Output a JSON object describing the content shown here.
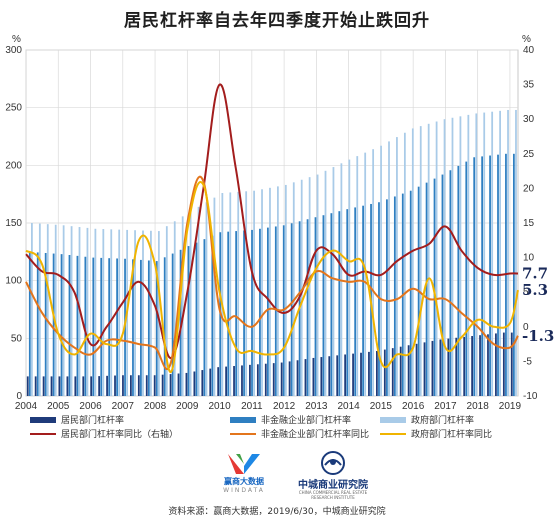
{
  "title": "居民杠杆率自去年四季度开始止跌回升",
  "source": "资料来源：赢商大数据，2019/6/30，中城商业研究院",
  "logos": {
    "wind_text": "赢商大数据",
    "wind_sub": "WINDATA",
    "zc_text": "中城商业研究院",
    "zc_sub": "CHINA COMMERCIAL REAL ESTATE RESEARCH INSTITUTE"
  },
  "chart_data": {
    "type": "bar",
    "left_axis": {
      "label": "%",
      "ylim": [
        0,
        300
      ],
      "ticks": [
        0,
        50,
        100,
        150,
        200,
        250,
        300
      ]
    },
    "right_axis": {
      "label": "%",
      "ylim": [
        -10,
        40
      ],
      "ticks": [
        -10,
        -5,
        0,
        5,
        10,
        15,
        20,
        25,
        30,
        35,
        40
      ]
    },
    "x_tick_labels": [
      "2004",
      "2005",
      "2006",
      "2007",
      "2008",
      "2009",
      "2010",
      "2011",
      "2012",
      "2013",
      "2014",
      "2015",
      "2016",
      "2017",
      "2018",
      "2019"
    ],
    "x_start": 2004.0,
    "x_end": 2019.25,
    "grid": true,
    "end_labels": [
      {
        "text": "7.7",
        "value": 7.7,
        "color": "#1a2a5a",
        "size": 15
      },
      {
        "text": "5.3",
        "value": 5.3,
        "color": "#1a2a5a",
        "size": 15
      },
      {
        "text": "-1.3",
        "value": -1.3,
        "color": "#1a2a5a",
        "size": 15
      }
    ],
    "series": [
      {
        "name": "居民部门杠杆率",
        "kind": "bar",
        "axis": "left",
        "color": "#1f3b7a",
        "x": [
          2004.0,
          2005.0,
          2006.0,
          2007.0,
          2008.0,
          2009.0,
          2010.0,
          2011.0,
          2012.0,
          2013.0,
          2014.0,
          2015.0,
          2016.0,
          2017.0,
          2018.0,
          2019.0
        ],
        "y": [
          17,
          17,
          17,
          18,
          18,
          20,
          25,
          27,
          29,
          33,
          36,
          39,
          44,
          49,
          52,
          55
        ]
      },
      {
        "name": "非金融企业部门杠杆率",
        "kind": "bar",
        "axis": "left",
        "color": "#2f7fc1",
        "x": [
          2004.0,
          2005.0,
          2006.0,
          2007.0,
          2008.0,
          2009.0,
          2010.0,
          2011.0,
          2012.0,
          2013.0,
          2014.0,
          2015.0,
          2016.0,
          2017.0,
          2018.0,
          2019.0
        ],
        "y": [
          125,
          123,
          120,
          119,
          117,
          130,
          142,
          144,
          148,
          155,
          162,
          168,
          178,
          192,
          207,
          210
        ]
      },
      {
        "name": "政府部门杠杆率",
        "kind": "bar",
        "axis": "left",
        "color": "#a9cbe8",
        "x": [
          2004.0,
          2005.0,
          2006.0,
          2007.0,
          2008.0,
          2009.0,
          2010.0,
          2011.0,
          2012.0,
          2013.0,
          2014.0,
          2015.0,
          2016.0,
          2017.0,
          2018.0,
          2019.0
        ],
        "y": [
          150,
          148,
          145,
          144,
          143,
          160,
          176,
          178,
          183,
          192,
          205,
          217,
          232,
          240,
          245,
          248
        ]
      },
      {
        "name": "居民部门杠杆率同比（右轴）",
        "kind": "line",
        "axis": "right",
        "color": "#a31d1d",
        "x": [
          2004.0,
          2004.5,
          2005.0,
          2005.5,
          2006.0,
          2006.5,
          2007.0,
          2007.5,
          2008.0,
          2008.5,
          2009.0,
          2009.5,
          2010.0,
          2010.5,
          2011.0,
          2011.5,
          2012.0,
          2012.5,
          2013.0,
          2013.5,
          2014.0,
          2014.5,
          2015.0,
          2015.5,
          2016.0,
          2016.5,
          2017.0,
          2017.5,
          2018.0,
          2018.5,
          2019.0,
          2019.25
        ],
        "y": [
          10.5,
          8.0,
          7.5,
          5.0,
          -2.5,
          0.0,
          3.5,
          6.5,
          3.0,
          -4.5,
          5.0,
          20.0,
          35.0,
          23.0,
          8.0,
          4.0,
          2.0,
          4.5,
          11.0,
          10.5,
          7.5,
          8.0,
          7.5,
          9.5,
          11.0,
          12.0,
          14.5,
          11.0,
          8.5,
          7.5,
          7.7,
          7.7
        ]
      },
      {
        "name": "非金融企业部门杠杆率同比",
        "kind": "line",
        "axis": "right",
        "color": "#e3751c",
        "x": [
          2004.0,
          2004.5,
          2005.0,
          2005.5,
          2006.0,
          2006.5,
          2007.0,
          2007.5,
          2008.0,
          2008.5,
          2009.0,
          2009.5,
          2010.0,
          2010.5,
          2011.0,
          2011.5,
          2012.0,
          2012.5,
          2013.0,
          2013.5,
          2014.0,
          2014.5,
          2015.0,
          2015.5,
          2016.0,
          2016.5,
          2017.0,
          2017.5,
          2018.0,
          2018.5,
          2019.0,
          2019.25
        ],
        "y": [
          6.5,
          2.0,
          -1.0,
          -3.0,
          -4.0,
          -2.0,
          -2.0,
          -2.5,
          -3.0,
          -5.0,
          15.0,
          21.0,
          2.5,
          1.5,
          0.0,
          2.5,
          2.5,
          5.0,
          8.0,
          7.0,
          6.5,
          6.5,
          4.0,
          4.0,
          5.5,
          4.0,
          4.0,
          2.0,
          0.0,
          -2.5,
          -3.0,
          -1.3
        ]
      },
      {
        "name": "政府部门杠杆率同比",
        "kind": "line",
        "axis": "right",
        "color": "#f0b400",
        "x": [
          2004.0,
          2004.5,
          2005.0,
          2005.5,
          2006.0,
          2006.5,
          2007.0,
          2007.5,
          2008.0,
          2008.5,
          2009.0,
          2009.5,
          2010.0,
          2010.5,
          2011.0,
          2011.5,
          2012.0,
          2012.5,
          2013.0,
          2013.5,
          2014.0,
          2014.5,
          2015.0,
          2015.5,
          2016.0,
          2016.5,
          2017.0,
          2017.5,
          2018.0,
          2018.5,
          2019.0,
          2019.25
        ],
        "y": [
          11.0,
          9.0,
          -1.0,
          -4.0,
          -1.0,
          -2.5,
          -1.0,
          12.5,
          9.0,
          -6.5,
          14.0,
          20.5,
          5.0,
          -3.0,
          -3.5,
          -4.0,
          -3.0,
          3.0,
          8.5,
          11.0,
          9.5,
          8.5,
          -5.0,
          -4.0,
          -3.0,
          7.0,
          -3.0,
          -1.5,
          1.0,
          0.0,
          0.5,
          5.3
        ]
      }
    ]
  }
}
